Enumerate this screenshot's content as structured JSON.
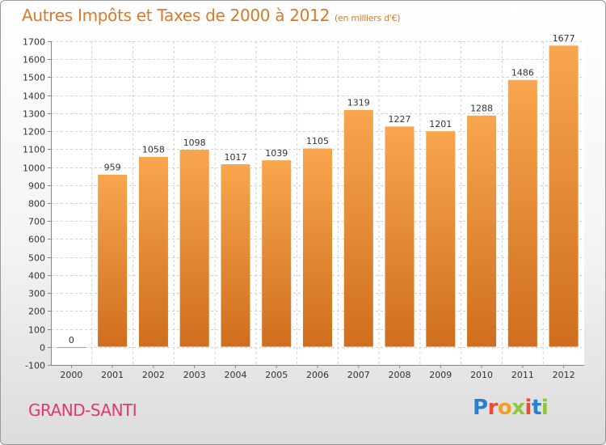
{
  "title": "Autres Impôts et Taxes de 2000 à 2012",
  "title_unit": "(en milliers d'€)",
  "commune": "GRAND-SANTI",
  "logo": {
    "letters": [
      "P",
      "r",
      "o",
      "x",
      "i",
      "t",
      "i"
    ],
    "colors": [
      "#2a7fd4",
      "#e84c3d",
      "#f2a023",
      "#8dc63f",
      "#e84c3d",
      "#2a7fd4",
      "#8dc63f"
    ]
  },
  "colors": {
    "title": "#d9792a",
    "commune": "#e2386b",
    "bar_top": "#f8a64e",
    "bar_bottom": "#cf6e1e"
  },
  "chart_data": {
    "type": "bar",
    "title": "Autres Impôts et Taxes de 2000 à 2012",
    "categories": [
      "2000",
      "2001",
      "2002",
      "2003",
      "2004",
      "2005",
      "2006",
      "2007",
      "2008",
      "2009",
      "2010",
      "2011",
      "2012"
    ],
    "values": [
      0,
      959,
      1058,
      1098,
      1017,
      1039,
      1105,
      1319,
      1227,
      1201,
      1288,
      1486,
      1677
    ],
    "ylim": [
      -100,
      1700
    ],
    "yticks": [
      -100,
      0,
      100,
      200,
      300,
      400,
      500,
      600,
      700,
      800,
      900,
      1000,
      1100,
      1200,
      1300,
      1400,
      1500,
      1600,
      1700
    ],
    "grid": true,
    "xlabel": "",
    "ylabel": ""
  }
}
